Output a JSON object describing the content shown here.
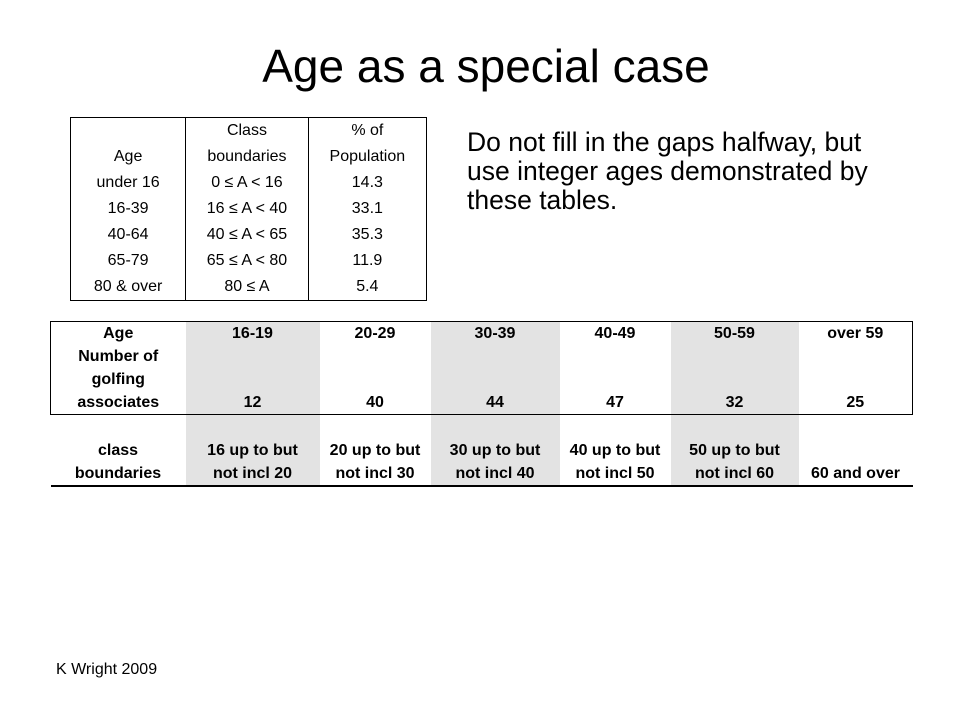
{
  "title": "Age as a special case",
  "note": "Do not fill in the gaps halfway, but use integer ages demonstrated by these tables.",
  "footer": "K Wright 2009",
  "table1": {
    "headers": [
      "Age",
      "Class boundaries",
      "% of Population"
    ],
    "header_lines": [
      [
        "",
        "Age"
      ],
      [
        "Class",
        "boundaries"
      ],
      [
        "% of",
        "Population"
      ]
    ],
    "rows": [
      [
        "under 16",
        "0 ≤ A < 16",
        "14.3"
      ],
      [
        "16-39",
        "16 ≤ A < 40",
        "33.1"
      ],
      [
        "40-64",
        "40 ≤ A < 65",
        "35.3"
      ],
      [
        "65-79",
        "65 ≤ A < 80",
        "11.9"
      ],
      [
        "80 & over",
        "80 ≤ A",
        "5.4"
      ]
    ]
  },
  "table2": {
    "age_label": "Age",
    "count_label": "Number of golfing associates",
    "count_label_lines": [
      "Number of",
      "golfing",
      "associates"
    ],
    "age_groups": [
      "16-19",
      "20-29",
      "30-39",
      "40-49",
      "50-59",
      "over 59"
    ],
    "counts": [
      "12",
      "40",
      "44",
      "47",
      "32",
      "25"
    ],
    "boundary_label_lines": [
      "class",
      "boundaries"
    ],
    "boundaries": [
      [
        "16 up to but",
        "not incl 20"
      ],
      [
        "20 up to but",
        "not incl 30"
      ],
      [
        "30 up to but",
        "not incl 40"
      ],
      [
        "40 up to but",
        "not incl 50"
      ],
      [
        "50 up to but",
        "not incl 60"
      ],
      [
        "",
        "60 and over"
      ]
    ]
  }
}
